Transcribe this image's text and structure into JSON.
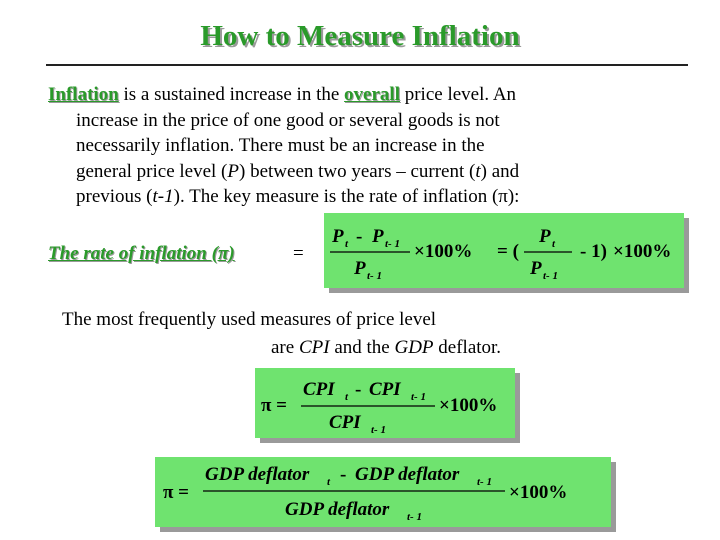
{
  "title": "How to Measure Inflation",
  "intro": {
    "term": "Inflation",
    "line1_a": " is a sustained increase in the ",
    "line1_kw": "overall",
    "line1_b": " price level. An",
    "line2": "increase in the price of one good or several goods is not",
    "line3": "necessarily inflation. There must be an increase in the",
    "line4_a": "general price level (",
    "var_P": "P",
    "line4_b": ") between two years – current (",
    "var_t": "t",
    "line4_c": ") and",
    "line5_a": "previous (",
    "var_t1": "t-1",
    "line5_b": "). The key measure is the rate of inflation (π):"
  },
  "rate_label": "The rate of inflation (π)",
  "rate_equals": "=",
  "formula1": {
    "P": "P",
    "sub_t": "t",
    "sub_t1": "t- 1",
    "minus": "-",
    "times100": "×100%",
    "equals_paren": "= (",
    "minus_one": "-  1)",
    "times100b": "×100%"
  },
  "freq": {
    "line1": "The most frequently used measures of price level",
    "line2_a": "are ",
    "cpi": "CPI",
    "line2_b": " and the ",
    "gdp": "GDP",
    "line2_c": " deflator."
  },
  "formula2": {
    "pi_eq": "π =",
    "cpi": "CPI",
    "sub_t": "t",
    "sub_t1": "t- 1",
    "minus": "-",
    "times100": "×100%"
  },
  "formula3": {
    "pi_eq": "π =",
    "gdp": "GDP deflator",
    "sub_t": "t",
    "sub_t1": "t- 1",
    "minus": "-",
    "times100": "×100%"
  },
  "colors": {
    "title_green": "#2a9a2a",
    "box_green": "#6fe36f",
    "shadow": "#9a9a9a"
  }
}
